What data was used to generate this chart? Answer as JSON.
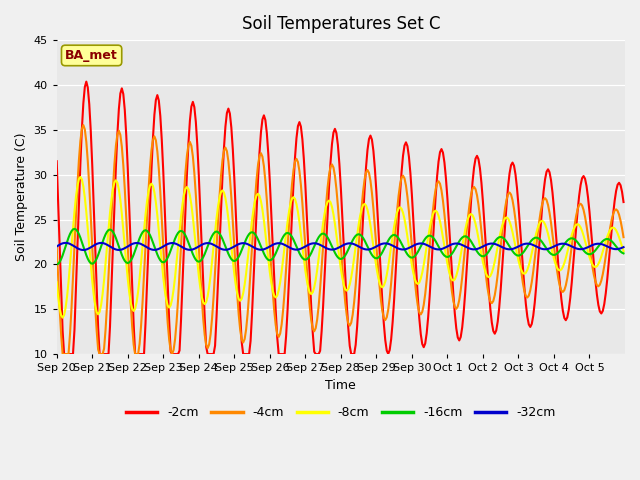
{
  "title": "Soil Temperatures Set C",
  "xlabel": "Time",
  "ylabel": "Soil Temperature (C)",
  "ylim": [
    10,
    45
  ],
  "fig_bg_color": "#f0f0f0",
  "plot_bg_color": "#e8e8e8",
  "legend_label": "BA_met",
  "series": [
    "-2cm",
    "-4cm",
    "-8cm",
    "-16cm",
    "-32cm"
  ],
  "colors": [
    "#ff0000",
    "#ff8800",
    "#ffff00",
    "#00cc00",
    "#0000cc"
  ],
  "x_labels": [
    "Sep 20",
    "Sep 21",
    "Sep 22",
    "Sep 23",
    "Sep 24",
    "Sep 25",
    "Sep 26",
    "Sep 27",
    "Sep 28",
    "Sep 29",
    "Sep 30",
    "Oct 1",
    "Oct 2",
    "Oct 3",
    "Oct 4",
    "Oct 5"
  ],
  "yticks": [
    10,
    15,
    20,
    25,
    30,
    35,
    40,
    45
  ],
  "linewidth": 1.5,
  "n_days": 16
}
